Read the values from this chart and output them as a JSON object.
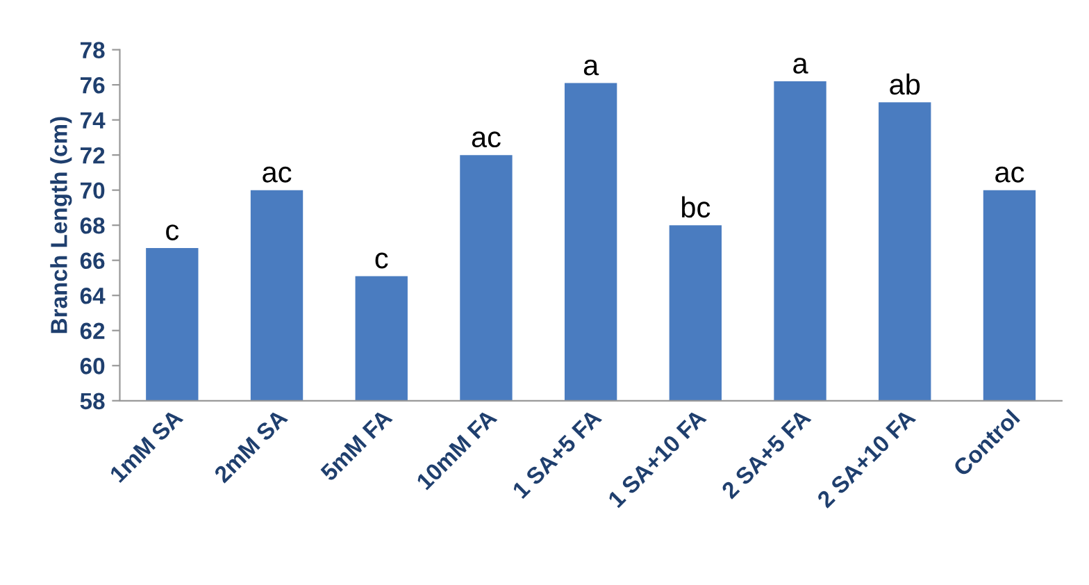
{
  "chart_data": {
    "type": "bar",
    "ylabel": "Branch Length (cm)",
    "categories": [
      "1mM SA",
      "2mM SA",
      "5mM FA",
      "10mM FA",
      "1 SA+5 FA",
      "1 SA+10 FA",
      "2 SA+5 FA",
      "2 SA+10 FA",
      "Control"
    ],
    "values": [
      66.7,
      70,
      65.1,
      72,
      76.1,
      68,
      76.2,
      75,
      70
    ],
    "color": "#4a7cc0",
    "ylim": [
      58,
      78
    ],
    "yticks": [
      58,
      60,
      62,
      64,
      66,
      68,
      70,
      72,
      74,
      76,
      78
    ],
    "grid": false,
    "annotations": [
      {
        "text": "c",
        "x": "1mM SA",
        "y": 66.7
      },
      {
        "text": "ac",
        "x": "2mM SA",
        "y": 70
      },
      {
        "text": "c",
        "x": "5mM FA",
        "y": 65.1
      },
      {
        "text": "ac",
        "x": "10mM FA",
        "y": 72
      },
      {
        "text": "a",
        "x": "1 SA+5 FA",
        "y": 76.1
      },
      {
        "text": "bc",
        "x": "1 SA+10 FA",
        "y": 68
      },
      {
        "text": "a",
        "x": "2 SA+5 FA",
        "y": 76.2
      },
      {
        "text": "ab",
        "x": "2 SA+10 FA",
        "y": 75
      },
      {
        "text": "ac",
        "x": "Control",
        "y": 70
      }
    ]
  }
}
